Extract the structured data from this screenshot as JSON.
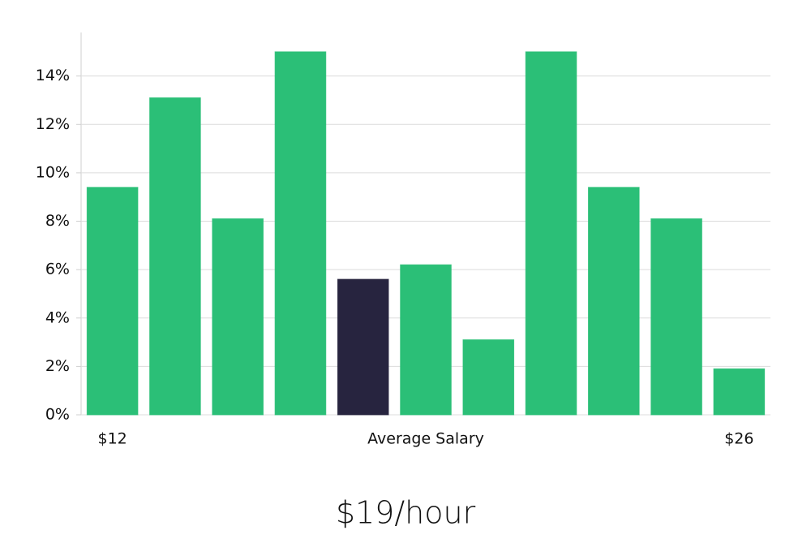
{
  "chart_data": {
    "type": "bar",
    "categories": [
      "$12",
      null,
      null,
      null,
      null,
      "Average Salary",
      null,
      null,
      null,
      null,
      "$26"
    ],
    "values": [
      9.4,
      13.1,
      8.1,
      15.0,
      5.6,
      6.2,
      3.1,
      15.0,
      9.4,
      8.1,
      1.9
    ],
    "colors": [
      "#2bbf77",
      "#2bbf77",
      "#2bbf77",
      "#2bbf77",
      "#27243f",
      "#2bbf77",
      "#2bbf77",
      "#2bbf77",
      "#2bbf77",
      "#2bbf77",
      "#2bbf77"
    ],
    "ylim": [
      0,
      15.8
    ],
    "yticks": [
      {
        "value": 0,
        "label": "0%"
      },
      {
        "value": 2,
        "label": "2%"
      },
      {
        "value": 4,
        "label": "4%"
      },
      {
        "value": 6,
        "label": "6%"
      },
      {
        "value": 8,
        "label": "8%"
      },
      {
        "value": 10,
        "label": "10%"
      },
      {
        "value": 12,
        "label": "12%"
      },
      {
        "value": 14,
        "label": "14%"
      }
    ],
    "grid": true,
    "annotation": "$19/hour"
  }
}
